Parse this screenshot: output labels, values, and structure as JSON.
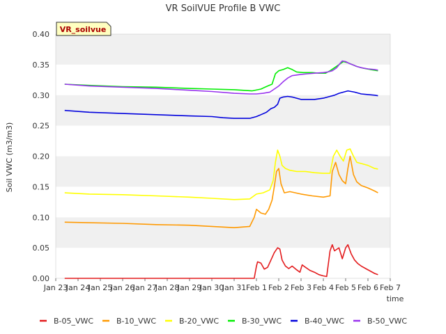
{
  "chart_data": {
    "type": "line",
    "title": "VR SoilVUE Profile B VWC",
    "xlabel": "time",
    "ylabel": "Soil VWC (m3/m3)",
    "badge": "VR_soilvue",
    "ylim": [
      0,
      0.4
    ],
    "yticks": [
      "0.00",
      "0.05",
      "0.10",
      "0.15",
      "0.20",
      "0.25",
      "0.30",
      "0.35",
      "0.40"
    ],
    "xlim": [
      0,
      15
    ],
    "xticks": [
      "Jan 23",
      "Jan 24",
      "Jan 25",
      "Jan 26",
      "Jan 27",
      "Jan 28",
      "Jan 29",
      "Jan 30",
      "Jan 31",
      "Feb 1",
      "Feb 2",
      "Feb 3",
      "Feb 4",
      "Feb 5",
      "Feb 6",
      "Feb 7"
    ],
    "legend_position": "bottom",
    "series": [
      {
        "name": "B-05_VWC",
        "color": "#e31a1c",
        "x": [
          0.4,
          2,
          4,
          6,
          8,
          8.9,
          9.0,
          9.05,
          9.2,
          9.35,
          9.5,
          9.65,
          9.8,
          9.95,
          10.05,
          10.15,
          10.3,
          10.45,
          10.6,
          10.8,
          10.95,
          11.05,
          11.2,
          11.4,
          11.6,
          11.8,
          12.0,
          12.15,
          12.3,
          12.4,
          12.5,
          12.7,
          12.85,
          13.0,
          13.1,
          13.25,
          13.4,
          13.55,
          13.7,
          13.9,
          14.1,
          14.3,
          14.45
        ],
        "y": [
          0.0,
          0.0,
          0.0,
          0.0,
          0.0,
          0.0,
          0.02,
          0.027,
          0.025,
          0.015,
          0.018,
          0.03,
          0.042,
          0.05,
          0.048,
          0.03,
          0.02,
          0.016,
          0.02,
          0.014,
          0.01,
          0.022,
          0.018,
          0.013,
          0.01,
          0.006,
          0.004,
          0.003,
          0.045,
          0.055,
          0.045,
          0.05,
          0.032,
          0.05,
          0.055,
          0.04,
          0.03,
          0.024,
          0.02,
          0.016,
          0.012,
          0.008,
          0.006
        ]
      },
      {
        "name": "B-10_VWC",
        "color": "#ff9900",
        "x": [
          0.4,
          1.5,
          3,
          4.5,
          6,
          7,
          8,
          8.7,
          8.9,
          9.0,
          9.2,
          9.4,
          9.55,
          9.7,
          9.8,
          9.9,
          10.0,
          10.1,
          10.25,
          10.5,
          11,
          11.5,
          12.0,
          12.3,
          12.4,
          12.55,
          12.7,
          12.85,
          13.0,
          13.1,
          13.2,
          13.35,
          13.5,
          13.7,
          14.0,
          14.3,
          14.45
        ],
        "y": [
          0.092,
          0.091,
          0.09,
          0.088,
          0.087,
          0.085,
          0.083,
          0.085,
          0.1,
          0.113,
          0.107,
          0.105,
          0.113,
          0.128,
          0.15,
          0.175,
          0.18,
          0.155,
          0.14,
          0.142,
          0.138,
          0.135,
          0.133,
          0.135,
          0.175,
          0.19,
          0.17,
          0.16,
          0.155,
          0.18,
          0.2,
          0.17,
          0.158,
          0.152,
          0.148,
          0.143,
          0.14
        ]
      },
      {
        "name": "B-20_VWC",
        "color": "#ffff00",
        "x": [
          0.4,
          1.5,
          3,
          4.5,
          6,
          7,
          8,
          8.7,
          9.0,
          9.3,
          9.6,
          9.75,
          9.85,
          9.95,
          10.05,
          10.15,
          10.3,
          10.5,
          10.8,
          11.2,
          11.6,
          12.0,
          12.3,
          12.45,
          12.6,
          12.75,
          12.9,
          13.05,
          13.2,
          13.35,
          13.5,
          13.7,
          14.0,
          14.3,
          14.45
        ],
        "y": [
          0.14,
          0.138,
          0.137,
          0.135,
          0.133,
          0.131,
          0.129,
          0.13,
          0.138,
          0.14,
          0.145,
          0.16,
          0.19,
          0.21,
          0.2,
          0.185,
          0.18,
          0.177,
          0.175,
          0.175,
          0.173,
          0.172,
          0.172,
          0.2,
          0.21,
          0.2,
          0.192,
          0.21,
          0.212,
          0.2,
          0.19,
          0.188,
          0.185,
          0.18,
          0.179
        ]
      },
      {
        "name": "B-30_VWC",
        "color": "#00ee00",
        "x": [
          0.4,
          1.5,
          3,
          4.5,
          6,
          7,
          8,
          8.8,
          9.2,
          9.5,
          9.7,
          9.85,
          10.0,
          10.2,
          10.4,
          10.6,
          10.8,
          11.1,
          11.5,
          11.8,
          12.1,
          12.3,
          12.5,
          12.7,
          12.9,
          13.1,
          13.3,
          13.5,
          13.8,
          14.1,
          14.45
        ],
        "y": [
          0.318,
          0.316,
          0.314,
          0.313,
          0.311,
          0.31,
          0.309,
          0.307,
          0.31,
          0.315,
          0.318,
          0.335,
          0.34,
          0.342,
          0.345,
          0.342,
          0.338,
          0.337,
          0.337,
          0.336,
          0.336,
          0.34,
          0.345,
          0.35,
          0.355,
          0.353,
          0.35,
          0.347,
          0.344,
          0.342,
          0.34
        ]
      },
      {
        "name": "B-40_VWC",
        "color": "#0000dd",
        "x": [
          0.4,
          1.5,
          3,
          4.5,
          6,
          7,
          7.5,
          8,
          8.7,
          9.0,
          9.2,
          9.45,
          9.65,
          9.8,
          9.95,
          10.05,
          10.2,
          10.4,
          10.6,
          10.8,
          11.0,
          11.3,
          11.6,
          12.0,
          12.3,
          12.5,
          12.7,
          12.9,
          13.1,
          13.4,
          13.7,
          14.0,
          14.3,
          14.45
        ],
        "y": [
          0.275,
          0.272,
          0.27,
          0.268,
          0.266,
          0.265,
          0.263,
          0.262,
          0.262,
          0.265,
          0.268,
          0.272,
          0.278,
          0.28,
          0.285,
          0.295,
          0.297,
          0.298,
          0.297,
          0.295,
          0.293,
          0.293,
          0.293,
          0.295,
          0.298,
          0.3,
          0.303,
          0.305,
          0.307,
          0.305,
          0.302,
          0.301,
          0.3,
          0.299
        ]
      },
      {
        "name": "B-50_VWC",
        "color": "#9933ee",
        "x": [
          0.4,
          1.5,
          3,
          4.5,
          6,
          7,
          8,
          8.7,
          9.0,
          9.3,
          9.6,
          9.8,
          10.0,
          10.2,
          10.4,
          10.6,
          10.8,
          11.0,
          11.3,
          11.6,
          12.0,
          12.2,
          12.4,
          12.6,
          12.75,
          12.85,
          13.0,
          13.15,
          13.3,
          13.5,
          13.7,
          14.0,
          14.3,
          14.45
        ],
        "y": [
          0.318,
          0.315,
          0.313,
          0.311,
          0.308,
          0.306,
          0.303,
          0.302,
          0.302,
          0.303,
          0.305,
          0.31,
          0.315,
          0.322,
          0.328,
          0.332,
          0.333,
          0.334,
          0.335,
          0.336,
          0.337,
          0.338,
          0.34,
          0.345,
          0.352,
          0.356,
          0.355,
          0.352,
          0.35,
          0.347,
          0.345,
          0.343,
          0.342,
          0.341
        ]
      }
    ]
  }
}
